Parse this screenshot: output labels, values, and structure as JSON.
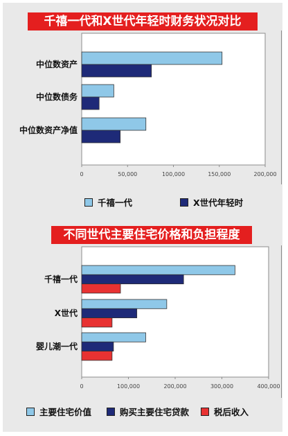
{
  "charts_titles": {
    "top": "千禧一代和X世代年轻时财务状况对比",
    "bottom": "不同世代主要住宅价格和负担程度"
  },
  "colors": {
    "light_blue": "#8fc8e8",
    "navy": "#1e2a78",
    "red": "#e83232",
    "banner_red": "#e41f1f"
  },
  "chart_data": [
    {
      "type": "bar",
      "orientation": "horizontal",
      "title": "千禧一代和X世代年轻时财务状况对比",
      "categories": [
        "中位数资产",
        "中位数债务",
        "中位数资产净值"
      ],
      "series": [
        {
          "name": "千禧一代",
          "values": [
            153000,
            35000,
            70000
          ],
          "color": "#8fc8e8"
        },
        {
          "name": "X世代年轻时",
          "values": [
            76000,
            19000,
            42000
          ],
          "color": "#1e2a78"
        }
      ],
      "xlim": [
        0,
        200000
      ],
      "xticks": [
        "0",
        "50,000",
        "100,000",
        "150,000",
        "200,000"
      ],
      "xtick_values": [
        0,
        50000,
        100000,
        150000,
        200000
      ],
      "grid": false,
      "legend_position": "bottom"
    },
    {
      "type": "bar",
      "orientation": "horizontal",
      "title": "不同世代主要住宅价格和负担程度",
      "categories": [
        "千禧一代",
        "X世代",
        "婴儿潮一代"
      ],
      "series": [
        {
          "name": "主要住宅价值",
          "values": [
            328000,
            182000,
            137000
          ],
          "color": "#8fc8e8"
        },
        {
          "name": "购买主要住宅贷款",
          "values": [
            218000,
            118000,
            68000
          ],
          "color": "#1e2a78"
        },
        {
          "name": "税后收入",
          "values": [
            83000,
            65000,
            65000
          ],
          "color": "#e83232"
        }
      ],
      "xlim": [
        0,
        400000
      ],
      "xticks": [
        "0",
        "100,000",
        "200,000",
        "300,000",
        "400,000"
      ],
      "xtick_values": [
        0,
        100000,
        200000,
        300000,
        400000
      ],
      "grid": false,
      "legend_position": "bottom"
    }
  ]
}
